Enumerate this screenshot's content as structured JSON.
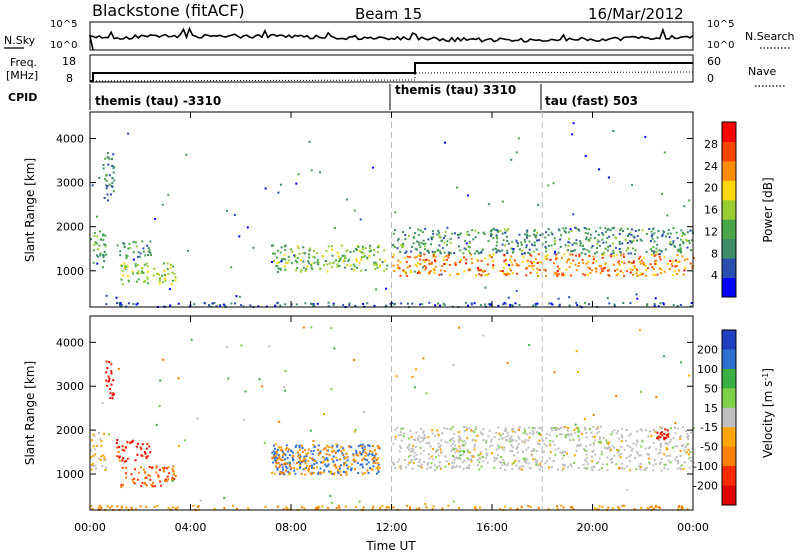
{
  "header": {
    "station": "Blackstone (fitACF)",
    "beam": "Beam 15",
    "date": "16/Mar/2012"
  },
  "noise_panel": {
    "left_label": "N.Sky",
    "right_label": "N.Search",
    "left_ticks": [
      "10^5",
      "10^0"
    ],
    "right_ticks": [
      "10^5",
      "10^0"
    ]
  },
  "freq_panel": {
    "left_label_1": "Freq.",
    "left_label_2": "[MHz]",
    "right_label": "Nave",
    "left_ticks": [
      "18",
      "8"
    ],
    "right_ticks": [
      "60",
      "0"
    ]
  },
  "cpid_panel": {
    "label": "CPID",
    "segments": [
      {
        "start_hour": 0,
        "name": "themis (tau) -3310"
      },
      {
        "start_hour": 12,
        "name": "themis (tau) 3310"
      },
      {
        "start_hour": 18,
        "name": "tau (fast) 503"
      }
    ]
  },
  "colors": {
    "power": [
      "#0000ff",
      "#2a4fb0",
      "#3d8c6a",
      "#4aa64a",
      "#9acd32",
      "#ffd700",
      "#ff8c00",
      "#ff4500",
      "#ff0000"
    ],
    "velocity_pos": [
      "#1f3fbf",
      "#2f6fd0",
      "#3cb043",
      "#7fd04a"
    ],
    "velocity_neg": [
      "#bfbfbf",
      "#ffa500",
      "#ff7f00",
      "#ff2a00",
      "#e00000"
    ]
  },
  "chart_data": [
    {
      "type": "heatmap",
      "name": "power",
      "xlabel": "",
      "ylabel": "Slant Range [km]",
      "xlim": [
        0,
        24
      ],
      "ylim": [
        180,
        4600
      ],
      "y_ticks": [
        1000,
        2000,
        3000,
        4000
      ],
      "colorbar": {
        "label": "Power [dB]",
        "range": [
          0,
          32
        ],
        "ticks": [
          4,
          8,
          12,
          16,
          20,
          24,
          28
        ]
      },
      "regions": [
        {
          "t0": 0.0,
          "t1": 0.6,
          "r0": 1100,
          "r1": 2000,
          "value": 12
        },
        {
          "t0": 0.5,
          "t1": 1.0,
          "r0": 2600,
          "r1": 3700,
          "value": 8
        },
        {
          "t0": 1.0,
          "t1": 2.4,
          "r0": 1300,
          "r1": 1700,
          "value": 10
        },
        {
          "t0": 1.2,
          "t1": 3.4,
          "r0": 700,
          "r1": 1200,
          "value": 16
        },
        {
          "t0": 7.2,
          "t1": 11.8,
          "r0": 1000,
          "r1": 1600,
          "value": 14
        },
        {
          "t0": 12.0,
          "t1": 24.0,
          "r0": 900,
          "r1": 1400,
          "value": 24
        },
        {
          "t0": 12.0,
          "t1": 24.0,
          "r0": 1400,
          "r1": 2000,
          "value": 10
        },
        {
          "t0": 0.0,
          "t1": 24.0,
          "r0": 200,
          "r1": 300,
          "value": 6
        }
      ]
    },
    {
      "type": "heatmap",
      "name": "velocity",
      "xlabel": "Time UT",
      "ylabel": "Slant Range [km]",
      "xlim": [
        0,
        24
      ],
      "ylim": [
        180,
        4600
      ],
      "x_ticks": [
        "00:00",
        "04:00",
        "08:00",
        "12:00",
        "16:00",
        "20:00",
        "00:00"
      ],
      "y_ticks": [
        1000,
        2000,
        3000,
        4000
      ],
      "colorbar": {
        "label": "Velocity [m s^-1]",
        "ticks": [
          "200",
          "100",
          "50",
          "15",
          "-15",
          "-50",
          "-100",
          "-200"
        ]
      },
      "regions": [
        {
          "t0": 0.0,
          "t1": 0.6,
          "r0": 1100,
          "r1": 2000,
          "value": -15
        },
        {
          "t0": 0.6,
          "t1": 1.0,
          "r0": 2700,
          "r1": 3600,
          "value": -200
        },
        {
          "t0": 1.0,
          "t1": 2.4,
          "r0": 1300,
          "r1": 1800,
          "value": -200
        },
        {
          "t0": 1.2,
          "t1": 3.4,
          "r0": 700,
          "r1": 1200,
          "value": -100
        },
        {
          "t0": 7.2,
          "t1": 11.5,
          "r0": 1000,
          "r1": 1700,
          "value": 150
        },
        {
          "t0": 7.2,
          "t1": 11.5,
          "r0": 1000,
          "r1": 1700,
          "value": -50
        },
        {
          "t0": 12.0,
          "t1": 24.0,
          "r0": 1100,
          "r1": 2100,
          "value": 0
        },
        {
          "t0": 22.5,
          "t1": 23.0,
          "r0": 1800,
          "r1": 2050,
          "value": -200
        },
        {
          "t0": 0.0,
          "t1": 24.0,
          "r0": 200,
          "r1": 300,
          "value": -50
        }
      ]
    }
  ]
}
